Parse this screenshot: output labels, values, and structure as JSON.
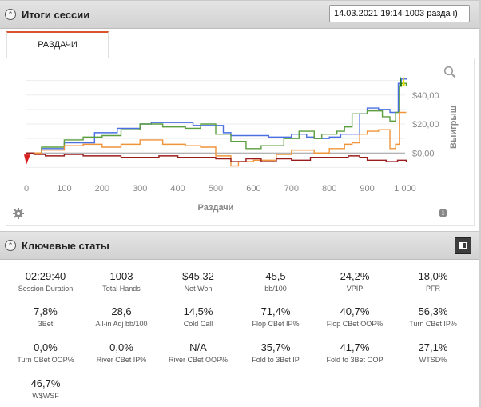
{
  "session_panel": {
    "title": "Итоги сессии",
    "selected_session": "14.03.2021 19:14 1003 раздач)",
    "tabs": [
      {
        "label": "РАЗДАЧИ"
      }
    ]
  },
  "chart_data": {
    "type": "line",
    "xlabel": "Раздачи",
    "ylabel": "Выигрыш",
    "xlim": [
      0,
      1000
    ],
    "ylim": [
      -12,
      52
    ],
    "x_ticks": [
      "0",
      "100",
      "200",
      "300",
      "400",
      "500",
      "600",
      "700",
      "800",
      "900",
      "1 000"
    ],
    "y_ticks": [
      "$40,00",
      "$20,00",
      "$0,00"
    ],
    "grid": true,
    "series": [
      {
        "color": "#4a6fe3",
        "x": [
          0,
          40,
          100,
          180,
          240,
          300,
          330,
          400,
          440,
          520,
          540,
          580,
          640,
          700,
          740,
          760,
          800,
          830,
          880,
          900,
          930,
          960,
          975,
          982,
          990,
          1003
        ],
        "y": [
          0,
          3,
          7,
          14,
          17,
          20,
          21,
          21,
          19,
          14,
          12,
          12,
          11,
          13,
          11,
          10,
          11,
          13,
          27,
          31,
          30,
          28,
          28,
          48,
          51,
          52
        ]
      },
      {
        "color": "#5a9e3e",
        "x": [
          0,
          40,
          100,
          150,
          200,
          250,
          300,
          360,
          420,
          460,
          500,
          540,
          580,
          620,
          680,
          720,
          760,
          780,
          820,
          840,
          860,
          900,
          940,
          960,
          975,
          985,
          990,
          1003
        ],
        "y": [
          0,
          4,
          9,
          11,
          12,
          16,
          20,
          18,
          17,
          20,
          13,
          8,
          3,
          5,
          10,
          15,
          10,
          13,
          15,
          18,
          27,
          29,
          25,
          22,
          28,
          46,
          48,
          46
        ]
      },
      {
        "color": "#f0943a",
        "x": [
          0,
          40,
          100,
          150,
          200,
          250,
          300,
          360,
          420,
          460,
          500,
          540,
          560,
          600,
          660,
          700,
          760,
          800,
          840,
          860,
          880,
          900,
          930,
          960,
          975,
          985,
          1003
        ],
        "y": [
          0,
          2,
          5,
          6,
          4,
          6,
          9,
          6,
          5,
          4,
          -2,
          -9,
          -6,
          -5,
          -1,
          2,
          0,
          3,
          6,
          7,
          13,
          15,
          16,
          3,
          6,
          28,
          28
        ]
      },
      {
        "color": "#9b1c1c",
        "x": [
          0,
          20,
          50,
          100,
          150,
          200,
          250,
          300,
          350,
          400,
          450,
          500,
          540,
          580,
          620,
          660,
          700,
          750,
          800,
          850,
          880,
          900,
          920,
          950,
          980,
          1003
        ],
        "y": [
          0,
          -1,
          -2,
          -1,
          -2,
          -2,
          -3,
          -3,
          -2,
          -3,
          -3,
          -4,
          -6,
          -4,
          -6,
          -4,
          -5,
          -3,
          -3,
          -2,
          -3,
          -5,
          -5,
          -6,
          -5,
          -6
        ]
      }
    ]
  },
  "stats_panel": {
    "title": "Ключевые статы",
    "stats": [
      {
        "value": "02:29:40",
        "label": "Session Duration"
      },
      {
        "value": "1003",
        "label": "Total Hands"
      },
      {
        "value": "$45.32",
        "label": "Net Won"
      },
      {
        "value": "45,5",
        "label": "bb/100"
      },
      {
        "value": "24,2%",
        "label": "VPIP"
      },
      {
        "value": "18,0%",
        "label": "PFR"
      },
      {
        "value": "7,8%",
        "label": "3Bet"
      },
      {
        "value": "28,6",
        "label": "All-in Adj bb/100"
      },
      {
        "value": "14,5%",
        "label": "Cold Call"
      },
      {
        "value": "71,4%",
        "label": "Flop CBet IP%"
      },
      {
        "value": "40,7%",
        "label": "Flop CBet OOP%"
      },
      {
        "value": "56,3%",
        "label": "Turn CBet IP%"
      },
      {
        "value": "0,0%",
        "label": "Turn CBet OOP%"
      },
      {
        "value": "0,0%",
        "label": "River CBet IP%"
      },
      {
        "value": "N/A",
        "label": "River CBet OOP%"
      },
      {
        "value": "35,7%",
        "label": "Fold to 3Bet IP"
      },
      {
        "value": "41,7%",
        "label": "Fold to 3Bet OOP"
      },
      {
        "value": "27,1%",
        "label": "WTSD%"
      },
      {
        "value": "46,7%",
        "label": "W$WSF"
      }
    ]
  }
}
